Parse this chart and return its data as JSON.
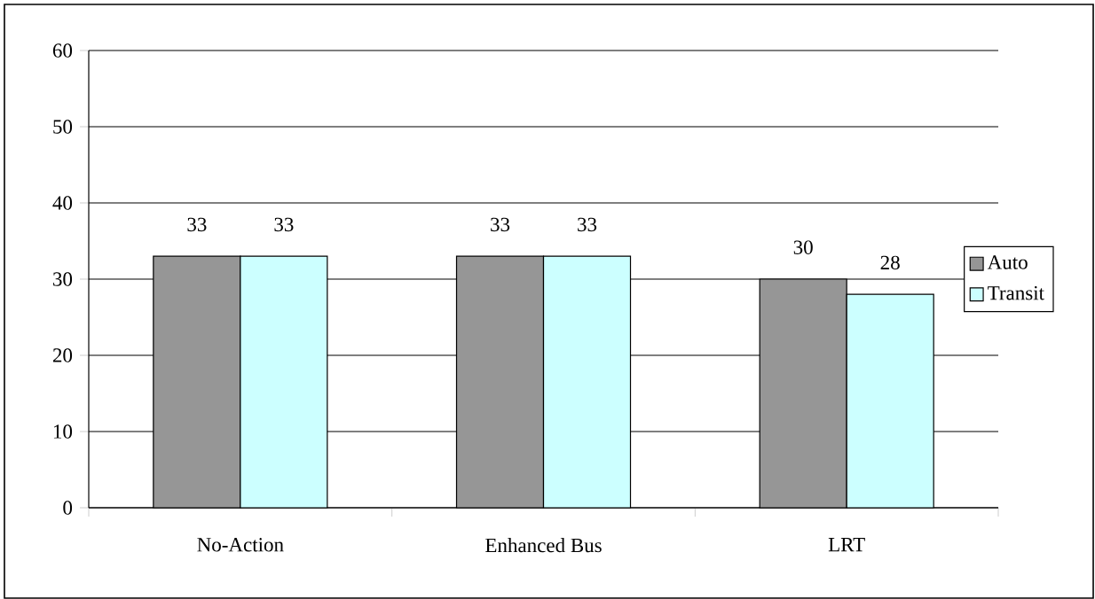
{
  "chart_data": {
    "type": "bar",
    "categories": [
      "No-Action",
      "Enhanced Bus",
      "LRT"
    ],
    "series": [
      {
        "name": "Auto",
        "color": "#969696",
        "values": [
          33,
          33,
          30
        ]
      },
      {
        "name": "Transit",
        "color": "#ccffff",
        "values": [
          33,
          33,
          28
        ]
      }
    ],
    "ylim": [
      0,
      60
    ],
    "yticks": [
      0,
      10,
      20,
      30,
      40,
      50,
      60
    ],
    "grid": "y",
    "legend": "right",
    "data_labels": true
  }
}
